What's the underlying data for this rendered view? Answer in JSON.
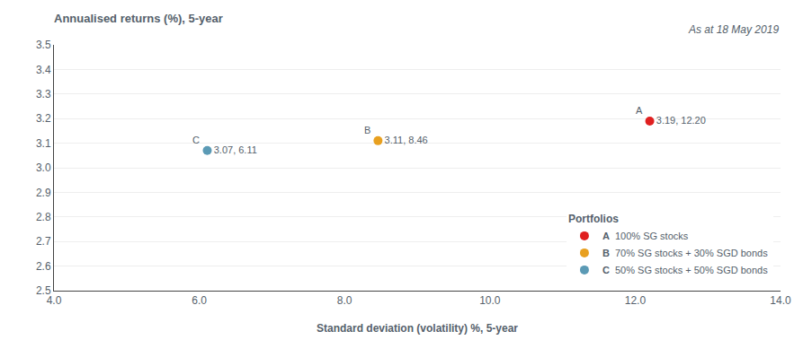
{
  "chart_data": {
    "type": "scatter",
    "title": "Annualised returns (%), 5-year",
    "subtitle": "As at 18 May 2019",
    "x_label": "Standard deviation (volatility) %, 5-year",
    "xlim": [
      4.0,
      14.0
    ],
    "ylim": [
      2.5,
      3.5
    ],
    "xticks": [
      {
        "value": 4,
        "label": "4.0"
      },
      {
        "value": 6,
        "label": "6.0"
      },
      {
        "value": 8,
        "label": "8.0"
      },
      {
        "value": 10,
        "label": "10.0"
      },
      {
        "value": 12,
        "label": "12.0"
      },
      {
        "value": 14,
        "label": "14.0"
      }
    ],
    "yticks": [
      2.5,
      2.6,
      2.7,
      2.8,
      2.9,
      {
        "value": 3,
        "label": "3.0"
      },
      3.1,
      3.2,
      3.3,
      3.4,
      3.5
    ],
    "grid": "y",
    "legend": "bottom right",
    "legend_title": "Portfolios",
    "data_labels": true,
    "series": [
      {
        "name": "100% SG stocks",
        "label": "A",
        "color": "#e02020",
        "x": [
          12.2
        ],
        "values": [
          3.19
        ],
        "value_labels": [
          "3.19, 12.20"
        ]
      },
      {
        "name": "70% SG stocks + 30% SGD bonds",
        "label": "B",
        "color": "#e8a020",
        "x": [
          8.46
        ],
        "values": [
          3.11
        ],
        "value_labels": [
          "3.11, 8.46"
        ]
      },
      {
        "name": "50% SG stocks + 50% SGD bonds",
        "label": "C",
        "color": "#5b9ab5",
        "x": [
          6.11
        ],
        "values": [
          3.07
        ],
        "value_labels": [
          "3.07, 6.11"
        ]
      }
    ]
  }
}
